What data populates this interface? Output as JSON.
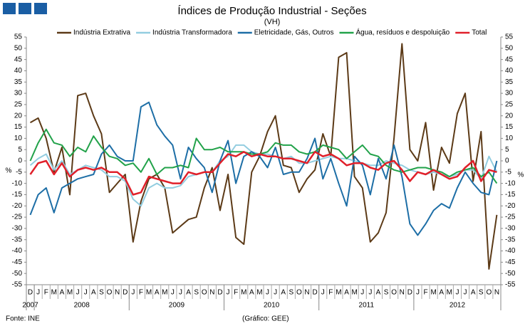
{
  "chart_data": {
    "type": "line",
    "title": "Índices de Produção Industrial - Seções",
    "subtitle": "(VH)",
    "y_label": "%",
    "y2_label": "%",
    "source": "Fonte: INE",
    "credit": "(Gráfico: GEE)",
    "categories": [
      "D",
      "J",
      "F",
      "M",
      "A",
      "M",
      "J",
      "J",
      "A",
      "S",
      "O",
      "N",
      "D",
      "J",
      "F",
      "M",
      "A",
      "M",
      "J",
      "J",
      "A",
      "S",
      "O",
      "N",
      "D",
      "J",
      "F",
      "M",
      "A",
      "M",
      "J",
      "J",
      "A",
      "S",
      "O",
      "N",
      "D",
      "J",
      "F",
      "M",
      "A",
      "M",
      "J",
      "J",
      "A",
      "S",
      "O",
      "N",
      "D",
      "J",
      "F",
      "M",
      "A",
      "M",
      "J",
      "J",
      "A",
      "S",
      "O",
      "N"
    ],
    "years": [
      "2007",
      "2008",
      "2009",
      "2010",
      "2011",
      "2012"
    ],
    "ylim": [
      -55,
      55
    ],
    "yticks": [
      -55,
      -50,
      -45,
      -40,
      -35,
      -30,
      -25,
      -20,
      -15,
      -10,
      -5,
      0,
      5,
      10,
      15,
      20,
      25,
      30,
      35,
      40,
      45,
      50,
      55
    ],
    "y2lim": [
      -55,
      55
    ],
    "y2ticks": [
      -55,
      -50,
      -45,
      -40,
      -35,
      -30,
      -25,
      -20,
      -15,
      -10,
      -5,
      0,
      5,
      10,
      15,
      20,
      25,
      30,
      35,
      40,
      45,
      50,
      55
    ],
    "series": [
      {
        "name": "Indústria Extrativa",
        "color": "#5c3a17",
        "values": [
          17,
          19,
          10,
          -5,
          6,
          -15,
          29,
          30,
          20,
          12,
          -14,
          -10,
          -6,
          -36,
          -18,
          -8,
          -6,
          -12,
          -32,
          -29,
          -26,
          -25,
          -12,
          -3,
          -22,
          -6,
          -34,
          -37,
          -5,
          2,
          13,
          20,
          -2,
          -3,
          -14,
          -8,
          -4,
          12,
          2,
          46,
          48,
          -7,
          -12,
          -36,
          -32,
          -23,
          10,
          52,
          5,
          0,
          17,
          -13,
          6,
          -1,
          21,
          30,
          -9,
          13,
          -48,
          -24
        ]
      },
      {
        "name": "Indústria Transformadora",
        "color": "#93cde0",
        "values": [
          -2,
          1,
          3,
          -4,
          0,
          -6,
          -4,
          -2,
          -3,
          -4,
          -7,
          -7,
          -9,
          -17,
          -20,
          -12,
          -10,
          -12,
          -12,
          -11,
          -7,
          -6,
          -5,
          -5,
          0,
          2,
          7,
          7,
          4,
          3,
          3,
          2,
          1,
          2,
          -1,
          -1,
          0,
          1,
          2,
          1,
          1,
          0,
          -1,
          -2,
          -2,
          0,
          -1,
          -2,
          -4,
          -5,
          -6,
          -5,
          -6,
          -7,
          -6,
          -4,
          -4,
          -8,
          2,
          -5
        ]
      },
      {
        "name": "Eletricidade, Gás, Outros",
        "color": "#1d6ea6",
        "values": [
          -24,
          -15,
          -12,
          -23,
          -12,
          -10,
          -8,
          -7,
          -6,
          3,
          7,
          2,
          0,
          0,
          24,
          26,
          16,
          11,
          7,
          -8,
          6,
          1,
          -3,
          -14,
          0,
          9,
          -10,
          2,
          4,
          2,
          -3,
          6,
          -6,
          -5,
          -5,
          1,
          10,
          -8,
          1,
          -10,
          -20,
          2,
          -2,
          -15,
          1,
          -8,
          7,
          -7,
          -28,
          -33,
          -28,
          -22,
          -19,
          -21,
          -12,
          -5,
          -10,
          -14,
          -15,
          0
        ]
      },
      {
        "name": "Água, resíduos e despoluição",
        "color": "#22a24a",
        "values": [
          0,
          8,
          14,
          8,
          7,
          2,
          6,
          4,
          11,
          6,
          2,
          1,
          -2,
          -1,
          -5,
          1,
          -6,
          -3,
          -3,
          -2,
          -3,
          10,
          5,
          5,
          6,
          4,
          4,
          4,
          3,
          3,
          4,
          8,
          7,
          7,
          4,
          3,
          4,
          7,
          6,
          5,
          1,
          4,
          7,
          3,
          2,
          -2,
          -4,
          -5,
          -4,
          -3,
          -3,
          -4,
          -5,
          -7,
          -5,
          -4,
          -3,
          -7,
          -5,
          -10
        ]
      },
      {
        "name": "Total",
        "color": "#e0202a",
        "values": [
          -6,
          -1,
          0,
          -6,
          -1,
          -7,
          -4,
          -3,
          -4,
          -3,
          -5,
          -5,
          -8,
          -15,
          -14,
          -7,
          -8,
          -9,
          -10,
          -10,
          -5,
          -6,
          -5,
          -5,
          -1,
          3,
          2,
          4,
          2,
          3,
          2,
          2,
          1,
          1,
          0,
          -1,
          4,
          2,
          3,
          1,
          -2,
          -1,
          -1,
          -3,
          -4,
          -1,
          0,
          -4,
          -9,
          -5,
          -6,
          -4,
          -6,
          -8,
          -7,
          -3,
          0,
          -9,
          -4,
          -5
        ]
      }
    ]
  }
}
